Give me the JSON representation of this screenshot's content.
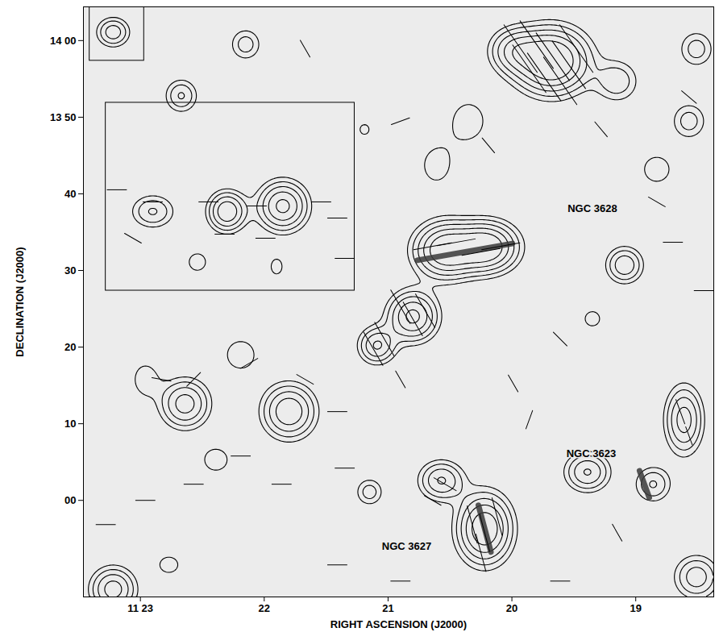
{
  "chart_data": {
    "type": "contour",
    "xlabel": "RIGHT ASCENSION (J2000)",
    "ylabel": "DECLINATION (J2000)",
    "xlim": [
      23.46,
      18.37
    ],
    "ylim": [
      -12.6,
      64.4
    ],
    "xticks": [
      {
        "value": 23,
        "label": "11 23"
      },
      22,
      21,
      20,
      19
    ],
    "yticks": [
      {
        "value": 60,
        "label": "14 00"
      },
      {
        "value": 50,
        "label": "13 50"
      },
      40,
      30,
      20,
      10,
      {
        "value": 0,
        "label": "00"
      }
    ],
    "thresholds": [
      1,
      1.6,
      2.4,
      3.4,
      4.6
    ],
    "sources": [
      {
        "ra": 20.54,
        "dec": 32.63,
        "peak": 6,
        "w": 0.16,
        "h": 2.3
      },
      {
        "ra": 20.2,
        "dec": 33.05,
        "peak": 6,
        "w": 0.16,
        "h": 2.1
      },
      {
        "ra": 20.8,
        "dec": 24.0,
        "peak": 5,
        "w": 0.13,
        "h": 2.1
      },
      {
        "ra": 21.09,
        "dec": 20.2,
        "peak": 3.5,
        "w": 0.1,
        "h": 1.6
      },
      {
        "ra": 19.68,
        "dec": 57.37,
        "peak": 7,
        "w": 0.19,
        "h": 2.7
      },
      {
        "ra": 19.99,
        "dec": 58.7,
        "peak": 3,
        "w": 0.13,
        "h": 1.9
      },
      {
        "ra": 20.35,
        "dec": 49.5,
        "peak": 1.4,
        "w": 0.14,
        "h": 2.6
      },
      {
        "ra": 20.61,
        "dec": 43.7,
        "peak": 1.3,
        "w": 0.13,
        "h": 2.6
      },
      {
        "ra": 19.15,
        "dec": 54.7,
        "peak": 2.2,
        "w": 0.12,
        "h": 1.9
      },
      {
        "ra": 18.57,
        "dec": 49.5,
        "peak": 2,
        "w": 0.1,
        "h": 1.7
      },
      {
        "ra": 18.83,
        "dec": 43.2,
        "peak": 1.4,
        "w": 0.12,
        "h": 1.9
      },
      {
        "ra": 19.09,
        "dec": 30.7,
        "peak": 3.2,
        "w": 0.1,
        "h": 1.6
      },
      {
        "ra": 19.35,
        "dec": 23.7,
        "peak": 1.6,
        "w": 0.06,
        "h": 0.95
      },
      {
        "ra": 20.22,
        "dec": -3.7,
        "peak": 6,
        "w": 0.14,
        "h": 2.9
      },
      {
        "ra": 20.57,
        "dec": 2.6,
        "peak": 3.5,
        "w": 0.12,
        "h": 1.7
      },
      {
        "ra": 19.39,
        "dec": 3.7,
        "peak": 3.5,
        "w": 0.12,
        "h": 1.7
      },
      {
        "ra": 18.61,
        "dec": 10.5,
        "peak": 4,
        "w": 0.1,
        "h": 2.9
      },
      {
        "ra": 18.86,
        "dec": 2.1,
        "peak": 2.5,
        "w": 0.1,
        "h": 1.6
      },
      {
        "ra": 18.51,
        "dec": -10,
        "peak": 3,
        "w": 0.12,
        "h": 1.9
      },
      {
        "ra": 22.3,
        "dec": 37.7,
        "peak": 4.5,
        "w": 0.1,
        "h": 1.7
      },
      {
        "ra": 21.85,
        "dec": 38.4,
        "peak": 5,
        "w": 0.13,
        "h": 2.1
      },
      {
        "ra": 22.9,
        "dec": 37.7,
        "peak": 2.5,
        "w": 0.12,
        "h": 1.5
      },
      {
        "ra": 22.54,
        "dec": 31.1,
        "peak": 1.4,
        "w": 0.08,
        "h": 1.3
      },
      {
        "ra": 21.9,
        "dec": 30.5,
        "peak": 1.3,
        "w": 0.06,
        "h": 1.3
      },
      {
        "ra": 22.64,
        "dec": 12.6,
        "peak": 4,
        "w": 0.13,
        "h": 2.1
      },
      {
        "ra": 21.8,
        "dec": 11.6,
        "peak": 4.5,
        "w": 0.14,
        "h": 2.3
      },
      {
        "ra": 22.39,
        "dec": 5.3,
        "peak": 1.5,
        "w": 0.1,
        "h": 1.5
      },
      {
        "ra": 22.19,
        "dec": 19.0,
        "peak": 1.4,
        "w": 0.13,
        "h": 2.1
      },
      {
        "ra": 22.96,
        "dec": 15.8,
        "peak": 1.5,
        "w": 0.09,
        "h": 1.9
      },
      {
        "ra": 22.67,
        "dec": 52.8,
        "peak": 2.5,
        "w": 0.09,
        "h": 1.5
      },
      {
        "ra": 22.15,
        "dec": 59.5,
        "peak": 2,
        "w": 0.09,
        "h": 1.5
      },
      {
        "ra": 23.22,
        "dec": 61.1,
        "peak": 3,
        "w": 0.09,
        "h": 1.3
      },
      {
        "ra": 21.15,
        "dec": 1.1,
        "peak": 2,
        "w": 0.08,
        "h": 1.3
      },
      {
        "ra": 23.22,
        "dec": -11.6,
        "peak": 4,
        "w": 0.12,
        "h": 1.9
      },
      {
        "ra": 22.77,
        "dec": -8.4,
        "peak": 1.5,
        "w": 0.08,
        "h": 1.1
      },
      {
        "ra": 18.51,
        "dec": 58.9,
        "peak": 2,
        "w": 0.1,
        "h": 1.7
      },
      {
        "ra": 21.19,
        "dec": 48.4,
        "peak": 1.2,
        "w": 0.06,
        "h": 1.05
      }
    ],
    "vectors": [
      {
        "ra": 19.93,
        "dec": 58.95,
        "angle": -35,
        "p": 9
      },
      {
        "ra": 19.8,
        "dec": 59.47,
        "angle": -35,
        "p": 9
      },
      {
        "ra": 19.67,
        "dec": 57.89,
        "angle": -35,
        "p": 9
      },
      {
        "ra": 19.54,
        "dec": 56.84,
        "angle": -35,
        "p": 9
      },
      {
        "ra": 19.74,
        "dec": 55.26,
        "angle": -35,
        "p": 9
      },
      {
        "ra": 19.61,
        "dec": 54.74,
        "angle": -35,
        "p": 9
      },
      {
        "ra": 19.86,
        "dec": 56.32,
        "angle": -35,
        "p": 9
      },
      {
        "ra": 19.48,
        "dec": 58.95,
        "angle": -35,
        "p": 9
      },
      {
        "ra": 20.64,
        "dec": 33.16,
        "angle": 80,
        "p": 6
      },
      {
        "ra": 20.45,
        "dec": 33.68,
        "angle": 80,
        "p": 6
      },
      {
        "ra": 20.25,
        "dec": 32.42,
        "angle": 80,
        "p": 6
      },
      {
        "ra": 20.09,
        "dec": 33.16,
        "angle": 80,
        "p": 6
      },
      {
        "ra": 20.9,
        "dec": 25.26,
        "angle": -30,
        "p": 6
      },
      {
        "ra": 20.8,
        "dec": 23.68,
        "angle": -30,
        "p": 6
      },
      {
        "ra": 20.7,
        "dec": 24.74,
        "angle": -30,
        "p": 6
      },
      {
        "ra": 21.03,
        "dec": 21.05,
        "angle": -30,
        "p": 6
      },
      {
        "ra": 21.12,
        "dec": 19.79,
        "angle": -30,
        "p": 6
      },
      {
        "ra": 20.32,
        "dec": -3.16,
        "angle": -15,
        "p": 6
      },
      {
        "ra": 20.22,
        "dec": -4.21,
        "angle": -15,
        "p": 6
      },
      {
        "ra": 20.12,
        "dec": -2.11,
        "angle": -15,
        "p": 6
      },
      {
        "ra": 20.25,
        "dec": -6.84,
        "angle": -15,
        "p": 6
      },
      {
        "ra": 20.54,
        "dec": 2.11,
        "angle": -60,
        "p": 4
      },
      {
        "ra": 20.64,
        "dec": 0,
        "angle": -60,
        "p": 3
      },
      {
        "ra": 18.64,
        "dec": 11.58,
        "angle": -20,
        "p": 4
      },
      {
        "ra": 18.57,
        "dec": 8.42,
        "angle": -20,
        "p": 3
      },
      {
        "ra": 23.19,
        "dec": 40.53,
        "angle": 90,
        "p": 3
      },
      {
        "ra": 22.9,
        "dec": 38.95,
        "angle": 90,
        "p": 3
      },
      {
        "ra": 22.45,
        "dec": 38.95,
        "angle": 90,
        "p": 3
      },
      {
        "ra": 22.06,
        "dec": 38.42,
        "angle": 90,
        "p": 3
      },
      {
        "ra": 21.54,
        "dec": 38.95,
        "angle": 90,
        "p": 3
      },
      {
        "ra": 21.41,
        "dec": 36.84,
        "angle": 90,
        "p": 3
      },
      {
        "ra": 23.06,
        "dec": 34.21,
        "angle": -60,
        "p": 3
      },
      {
        "ra": 22.32,
        "dec": 34.74,
        "angle": 90,
        "p": 3
      },
      {
        "ra": 21.99,
        "dec": 34.21,
        "angle": 90,
        "p": 3
      },
      {
        "ra": 21.35,
        "dec": 31.58,
        "angle": 90,
        "p": 3
      },
      {
        "ra": 22.57,
        "dec": 15.79,
        "angle": 45,
        "p": 3
      },
      {
        "ra": 22.83,
        "dec": 15.79,
        "angle": -80,
        "p": 3
      },
      {
        "ra": 22.12,
        "dec": 17.89,
        "angle": 60,
        "p": 3
      },
      {
        "ra": 21.67,
        "dec": 15.79,
        "angle": -60,
        "p": 3
      },
      {
        "ra": 21.41,
        "dec": 11.58,
        "angle": 90,
        "p": 3
      },
      {
        "ra": 22.19,
        "dec": 5.79,
        "angle": 90,
        "p": 3
      },
      {
        "ra": 22.57,
        "dec": 2.11,
        "angle": 90,
        "p": 3
      },
      {
        "ra": 21.35,
        "dec": 4.21,
        "angle": 90,
        "p": 3
      },
      {
        "ra": 21.86,
        "dec": 2.11,
        "angle": 90,
        "p": 3
      },
      {
        "ra": 23.28,
        "dec": -3.16,
        "angle": 90,
        "p": 3
      },
      {
        "ra": 22.96,
        "dec": 0,
        "angle": 90,
        "p": 3
      },
      {
        "ra": 21.41,
        "dec": -8.42,
        "angle": 90,
        "p": 3
      },
      {
        "ra": 20.9,
        "dec": -10.53,
        "angle": 90,
        "p": 3
      },
      {
        "ra": 20.9,
        "dec": 15.79,
        "angle": -30,
        "p": 3
      },
      {
        "ra": 19.99,
        "dec": 15.26,
        "angle": -30,
        "p": 3
      },
      {
        "ra": 19.86,
        "dec": 10.53,
        "angle": 20,
        "p": 3
      },
      {
        "ra": 19.61,
        "dec": 21.05,
        "angle": -45,
        "p": 3
      },
      {
        "ra": 18.7,
        "dec": 33.68,
        "angle": 90,
        "p": 3
      },
      {
        "ra": 18.83,
        "dec": 38.95,
        "angle": -60,
        "p": 3
      },
      {
        "ra": 19.28,
        "dec": 48.42,
        "angle": -40,
        "p": 3
      },
      {
        "ra": 20.19,
        "dec": 46.32,
        "angle": -40,
        "p": 3
      },
      {
        "ra": 20.9,
        "dec": 49.47,
        "angle": 70,
        "p": 3
      },
      {
        "ra": 21.67,
        "dec": 58.95,
        "angle": -30,
        "p": 3
      },
      {
        "ra": 18.57,
        "dec": 52.63,
        "angle": -50,
        "p": 3
      },
      {
        "ra": 18.45,
        "dec": 27.37,
        "angle": 90,
        "p": 3
      },
      {
        "ra": 19.15,
        "dec": -4.21,
        "angle": -30,
        "p": 3
      },
      {
        "ra": 19.61,
        "dec": -10.53,
        "angle": 90,
        "p": 3
      }
    ],
    "galaxies": [
      {
        "name": "NGC 3628",
        "ra": 20.38,
        "dec": 32.42,
        "pa": 80,
        "size": 12.6,
        "label_ra": 19.35,
        "label_dec": 38.1
      },
      {
        "name": "NGC 3623",
        "ra": 18.93,
        "dec": 2.11,
        "pa": -20,
        "size": 3.7,
        "label_ra": 19.36,
        "label_dec": 6.1
      },
      {
        "name": "NGC 3627",
        "ra": 20.22,
        "dec": -3.68,
        "pa": -15,
        "size": 6.3,
        "label_ra": 20.85,
        "label_dec": -6
      }
    ],
    "boxes": [
      {
        "ra1": 23.28,
        "ra2": 21.27,
        "dec1": 27.37,
        "dec2": 51.89
      },
      {
        "ra1": 23.41,
        "ra2": 22.97,
        "dec1": 57.37,
        "dec2": 64.4
      }
    ]
  }
}
